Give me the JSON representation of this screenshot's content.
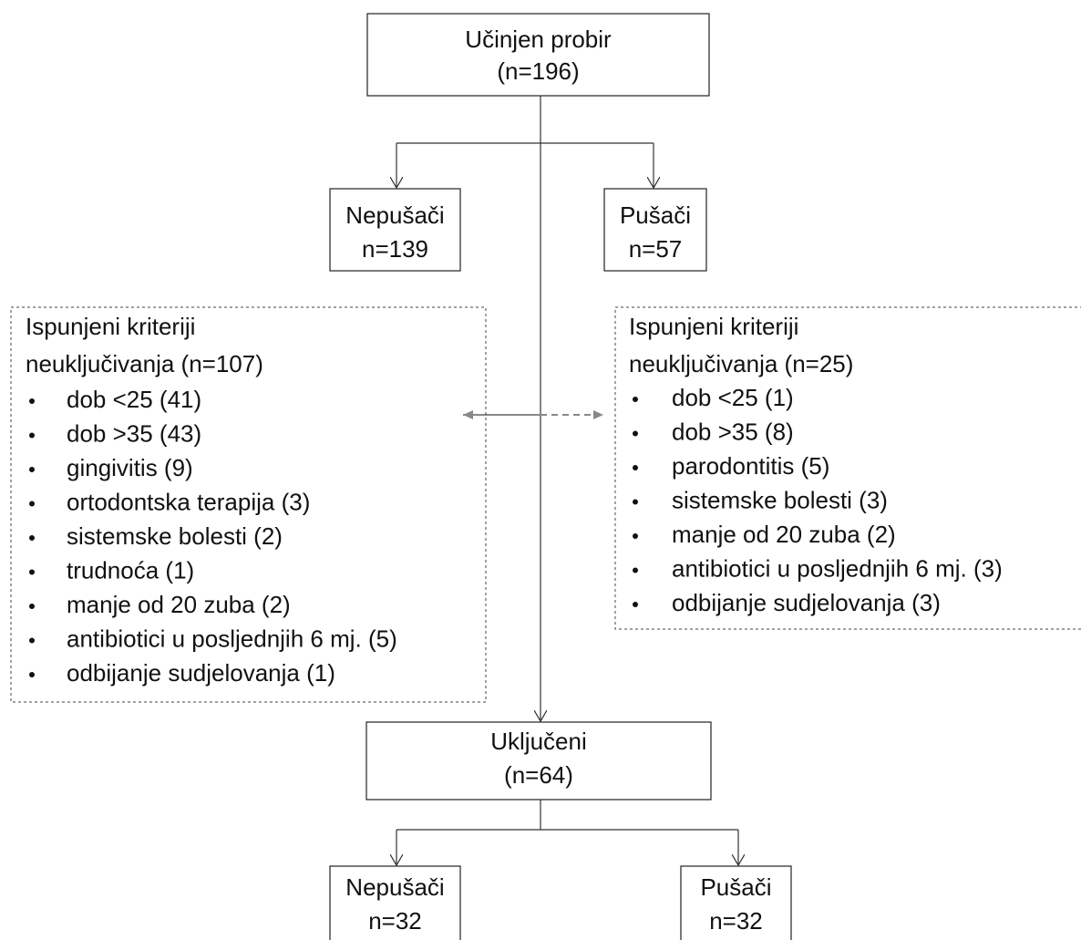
{
  "nodes": [
    {
      "lines": [
        "Učinjen probir",
        "(n=196)"
      ]
    },
    {
      "lines": [
        "Nepušači",
        "n=139"
      ]
    },
    {
      "lines": [
        "Pušači",
        "n=57"
      ]
    },
    {
      "lines": [
        "Uključeni",
        "(n=64)"
      ]
    },
    {
      "lines": [
        "Nepušači",
        "n=32"
      ]
    },
    {
      "lines": [
        "Pušači",
        "n=32"
      ]
    }
  ],
  "exclusions": [
    {
      "title": [
        "Ispunjeni kriteriji",
        "neuključivanja (n=107)"
      ],
      "items": [
        "dob <25 (41)",
        "dob >35 (43)",
        "gingivitis (9)",
        "ortodontska terapija (3)",
        "sistemske bolesti (2)",
        "trudnoća (1)",
        "manje od 20 zuba (2)",
        "antibiotici u posljednjih 6 mj. (5)",
        "odbijanje sudjelovanja (1)"
      ]
    },
    {
      "title": [
        "Ispunjeni kriteriji",
        "neuključivanja (n=25)"
      ],
      "items": [
        "dob <25 (1)",
        "dob >35 (8)",
        "parodontitis (5)",
        "sistemske bolesti (3)",
        "manje od 20 zuba (2)",
        "antibiotici u posljednjih 6 mj. (3)",
        "odbijanje sudjelovanja (3)"
      ]
    }
  ]
}
